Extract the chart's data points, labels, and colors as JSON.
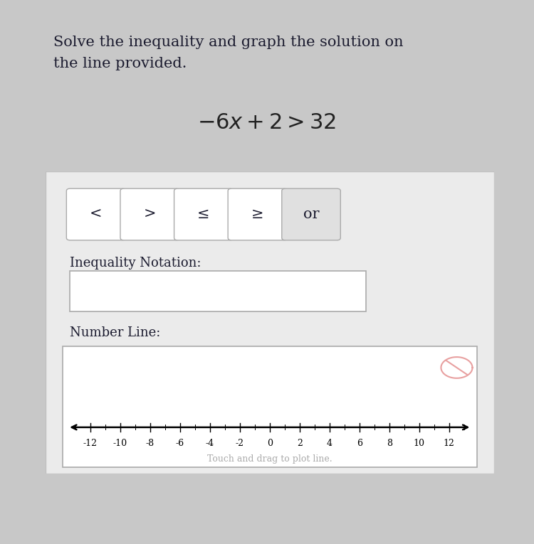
{
  "title_line1": "Solve the inequality and graph the solution on",
  "title_line2": "the line provided.",
  "equation_latex": "$-6x + 2 > 32$",
  "button_labels": [
    "<",
    ">",
    "≤",
    "≥",
    "or"
  ],
  "inequality_label": "Inequality Notation:",
  "number_line_label": "Number Line:",
  "touch_drag_label": "Touch and drag to plot line.",
  "x_ticks": [
    -12,
    -10,
    -8,
    -6,
    -4,
    -2,
    0,
    2,
    4,
    6,
    8,
    10,
    12
  ],
  "x_min": -13.5,
  "x_max": 13.5,
  "fig_bg": "#c8c8c8",
  "main_bg": "#ffffff",
  "panel_bg": "#ebebeb",
  "panel_border": "#c0c0c0",
  "button_bg_normal": "#ffffff",
  "button_bg_selected": "#e0e0e0",
  "button_border": "#aaaaaa",
  "box_bg": "#ffffff",
  "box_border": "#aaaaaa",
  "text_color": "#1a1a2e",
  "eq_color": "#222222",
  "nl_text_color": "#aaaaaa",
  "cancel_color": "#e8a0a0",
  "title_fontsize": 15,
  "eq_fontsize": 22,
  "label_fontsize": 13,
  "button_fontsize": 15,
  "tick_fontsize": 9,
  "touch_fontsize": 9
}
